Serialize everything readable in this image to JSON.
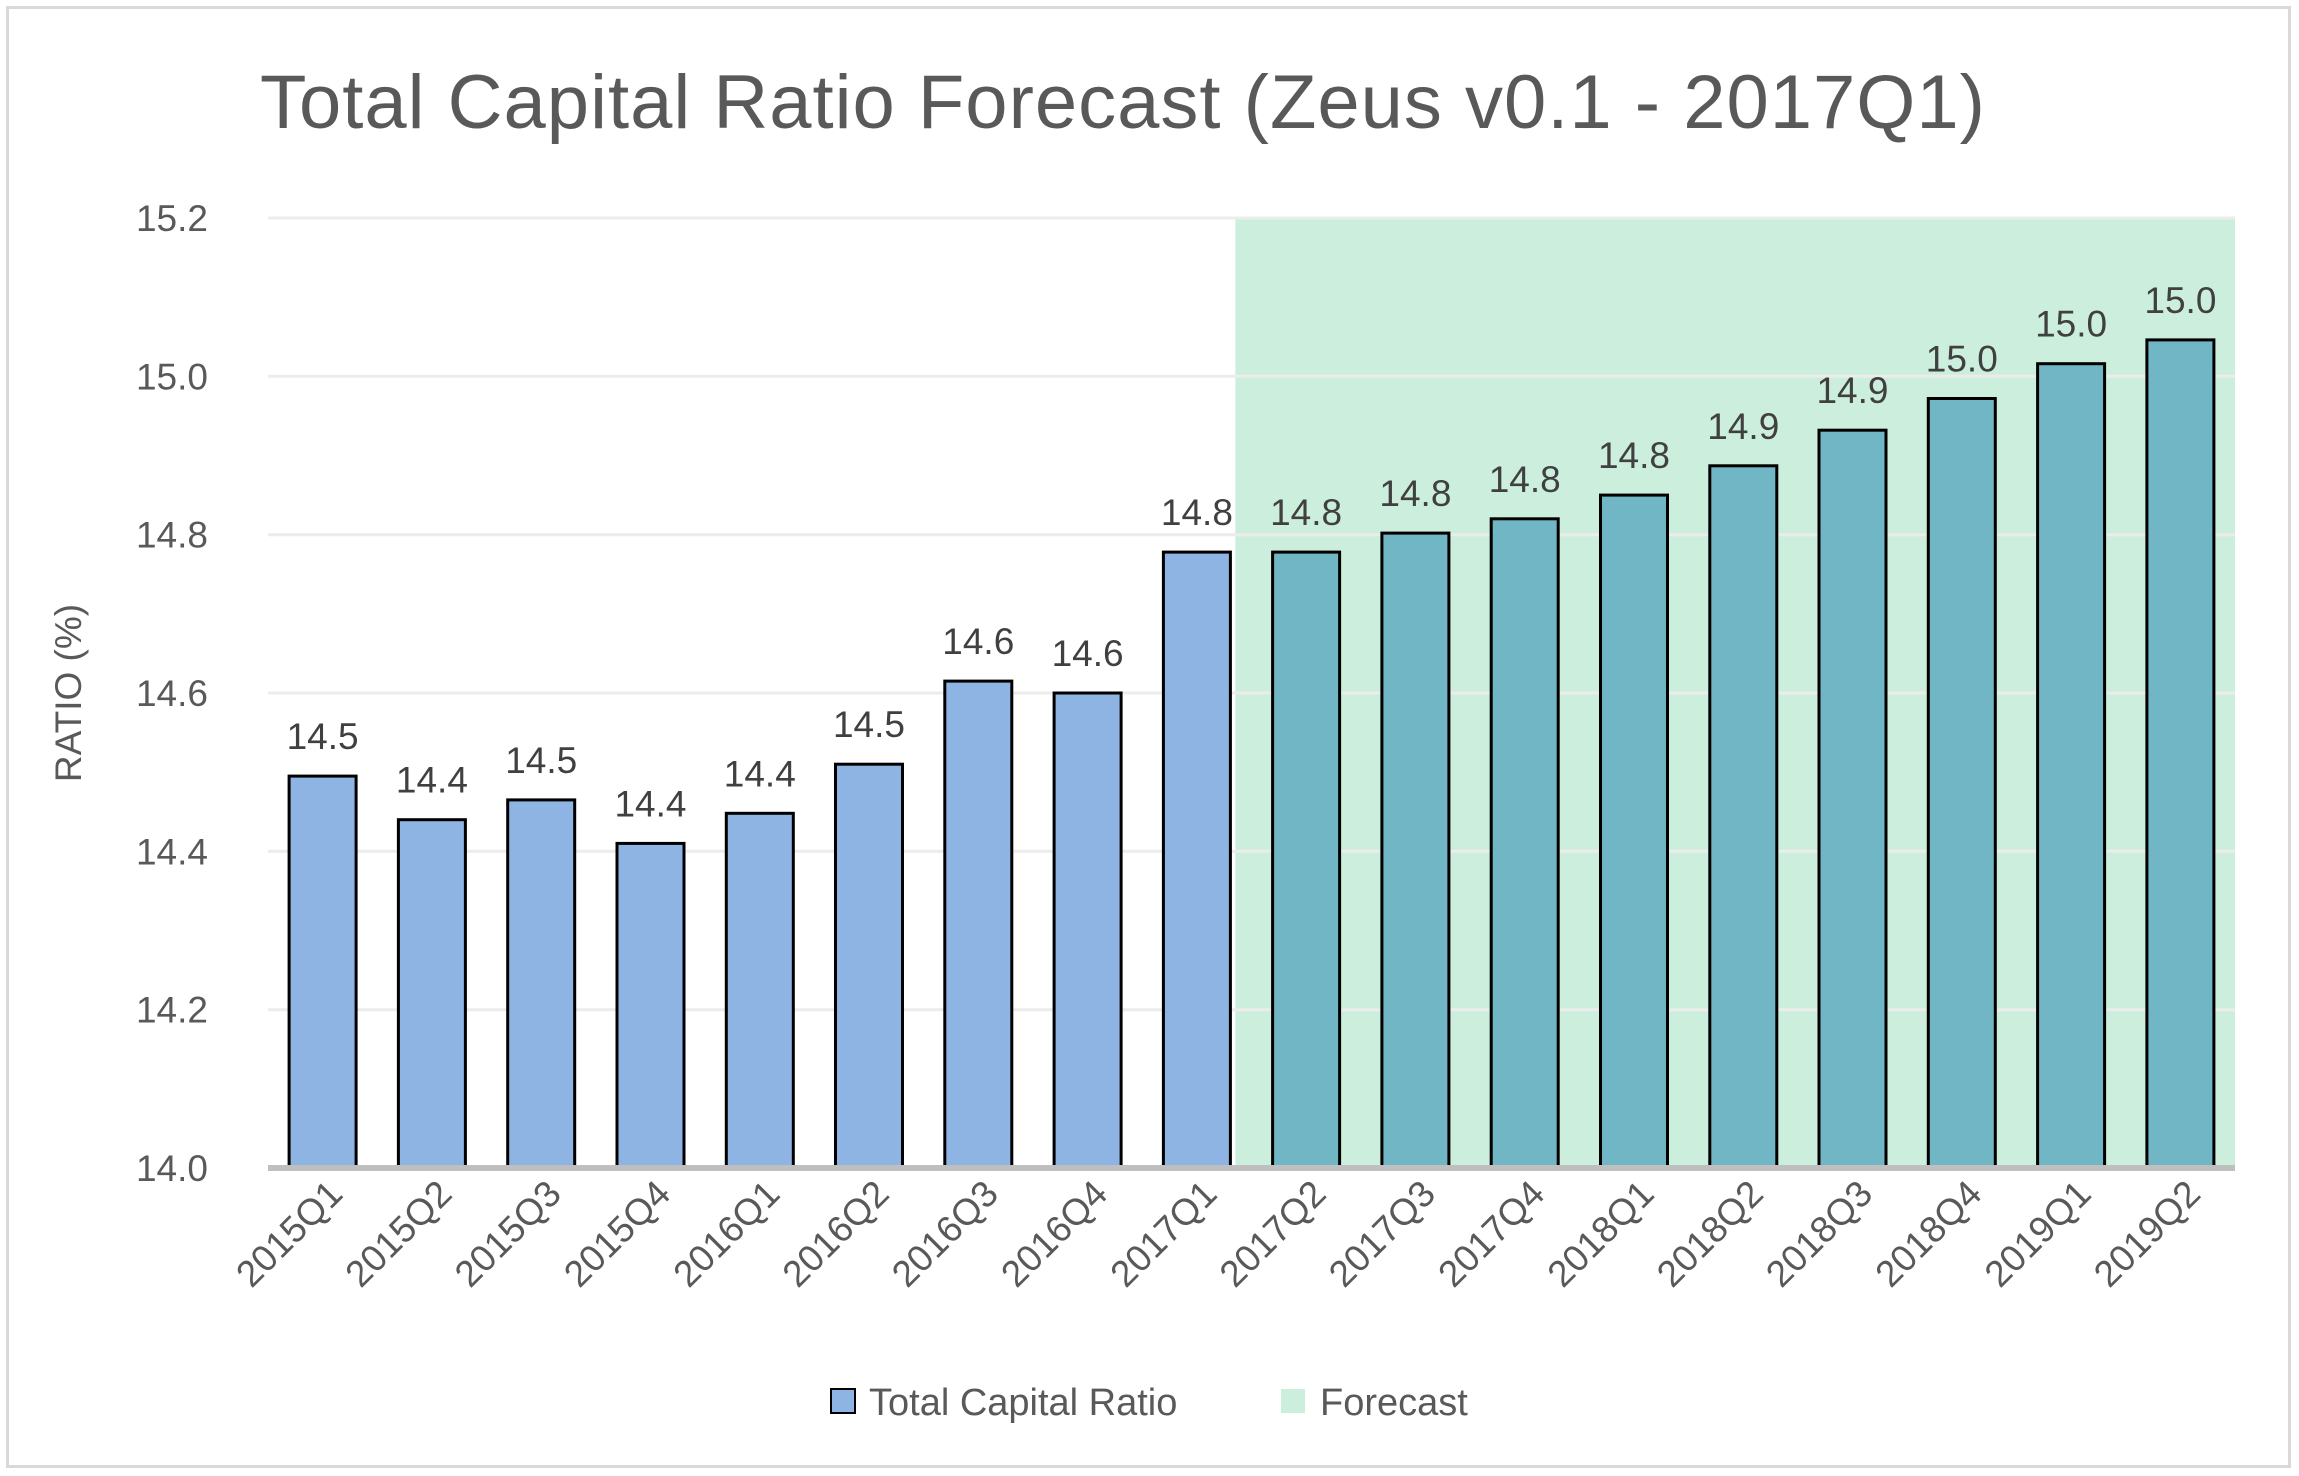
{
  "chart_data": {
    "type": "bar",
    "title": "Total Capital Ratio Forecast (Zeus v0.1 - 2017Q1)",
    "xlabel": "",
    "ylabel": "RATIO (%)",
    "ylim": [
      14.0,
      15.2
    ],
    "y_ticks": [
      "14.0",
      "14.2",
      "14.4",
      "14.6",
      "14.8",
      "15.0",
      "15.2"
    ],
    "grid": true,
    "legend_position": "bottom",
    "categories": [
      "2015Q1",
      "2015Q2",
      "2015Q3",
      "2015Q4",
      "2016Q1",
      "2016Q2",
      "2016Q3",
      "2016Q4",
      "2017Q1",
      "2017Q2",
      "2017Q3",
      "2017Q4",
      "2018Q1",
      "2018Q2",
      "2018Q3",
      "2018Q4",
      "2019Q1",
      "2019Q2"
    ],
    "series": [
      {
        "name": "Total Capital Ratio",
        "values": [
          14.495,
          14.44,
          14.465,
          14.41,
          14.448,
          14.51,
          14.615,
          14.6,
          14.778,
          14.778,
          14.802,
          14.82,
          14.85,
          14.887,
          14.932,
          14.972,
          15.016,
          15.046
        ],
        "data_labels": [
          "14.5",
          "14.4",
          "14.5",
          "14.4",
          "14.4",
          "14.5",
          "14.6",
          "14.6",
          "14.8",
          "14.8",
          "14.8",
          "14.8",
          "14.8",
          "14.9",
          "14.9",
          "15.0",
          "15.0",
          "15.0"
        ],
        "color": "#8DB4E2",
        "border_color": "#000000"
      }
    ],
    "forecast": {
      "name": "Forecast",
      "start_category": "2017Q2",
      "end_category": "2019Q2",
      "color": "#CCEEDC"
    },
    "colors": {
      "bar": "#8DB4E2",
      "bar_in_forecast": "#70B6C4",
      "forecast_band": "#CCEEDC",
      "gridline": "#ececec",
      "axis": "#bfbfbf"
    }
  }
}
